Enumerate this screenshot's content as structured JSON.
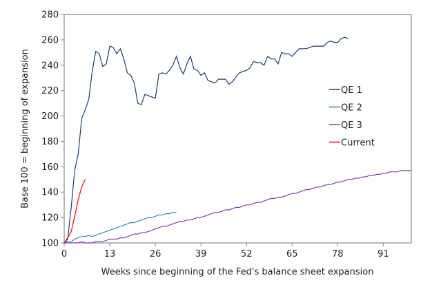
{
  "chart_data": {
    "type": "line",
    "title": "",
    "xlabel": "Weeks since beginning of the Fed's balance sheet expansion",
    "ylabel": "Base 100 = beginning of expansion",
    "xlim": [
      0,
      99
    ],
    "ylim": [
      100,
      280
    ],
    "x_ticks": [
      0,
      13,
      26,
      39,
      52,
      65,
      78,
      91
    ],
    "y_ticks": [
      100,
      120,
      140,
      160,
      180,
      200,
      220,
      240,
      260,
      280
    ],
    "grid": false,
    "legend_position": "right",
    "series": [
      {
        "name": "QE 1",
        "color": "#1f3a6e",
        "start": 0,
        "values": [
          100,
          103,
          128,
          157,
          170,
          198,
          205,
          213,
          235,
          251,
          249,
          239,
          241,
          255,
          254,
          249,
          253,
          245,
          234,
          232,
          226,
          210,
          209,
          217,
          216,
          215,
          214,
          233,
          234,
          233,
          236,
          240,
          247,
          238,
          233,
          241,
          247,
          237,
          236,
          232,
          234,
          228,
          227,
          226,
          229,
          229,
          229,
          225,
          227,
          231,
          234,
          235,
          236,
          238,
          243,
          242,
          242,
          240,
          247,
          245,
          245,
          241,
          250,
          249,
          249,
          247,
          250,
          253,
          253,
          253,
          254,
          255,
          255,
          255,
          255,
          258,
          259,
          258,
          258,
          261,
          262,
          261
        ]
      },
      {
        "name": "QE 2",
        "color": "#2e86c8",
        "start": 0,
        "values": [
          100,
          101,
          101,
          103,
          104,
          105,
          105,
          106,
          105,
          106,
          107,
          108,
          109,
          110,
          111,
          112,
          113,
          114,
          115,
          116,
          116,
          117,
          118,
          119,
          120,
          120,
          121,
          122,
          122,
          123,
          123,
          124,
          124
        ]
      },
      {
        "name": "QE 3",
        "color": "#7b3fb0",
        "start": 0,
        "values": [
          100,
          100,
          100,
          100,
          100,
          101,
          100,
          100,
          100,
          101,
          101,
          101,
          102,
          103,
          103,
          103,
          104,
          104,
          105,
          106,
          107,
          107,
          108,
          108,
          109,
          110,
          111,
          112,
          113,
          113,
          114,
          115,
          116,
          117,
          117,
          118,
          118,
          119,
          120,
          120,
          121,
          122,
          123,
          124,
          124,
          125,
          126,
          126,
          127,
          128,
          128,
          129,
          130,
          130,
          131,
          132,
          132,
          133,
          134,
          135,
          135,
          136,
          136,
          137,
          138,
          139,
          139,
          140,
          141,
          142,
          142,
          143,
          144,
          144,
          145,
          146,
          146,
          147,
          148,
          148,
          149,
          150,
          150,
          151,
          151,
          152,
          152,
          153,
          153,
          154,
          154,
          155,
          155,
          156,
          156,
          156,
          157,
          157,
          157,
          157
        ]
      },
      {
        "name": "Current",
        "color": "#ff0000",
        "start": 0,
        "values": [
          100,
          104,
          109,
          121,
          134,
          144,
          150
        ]
      }
    ]
  }
}
